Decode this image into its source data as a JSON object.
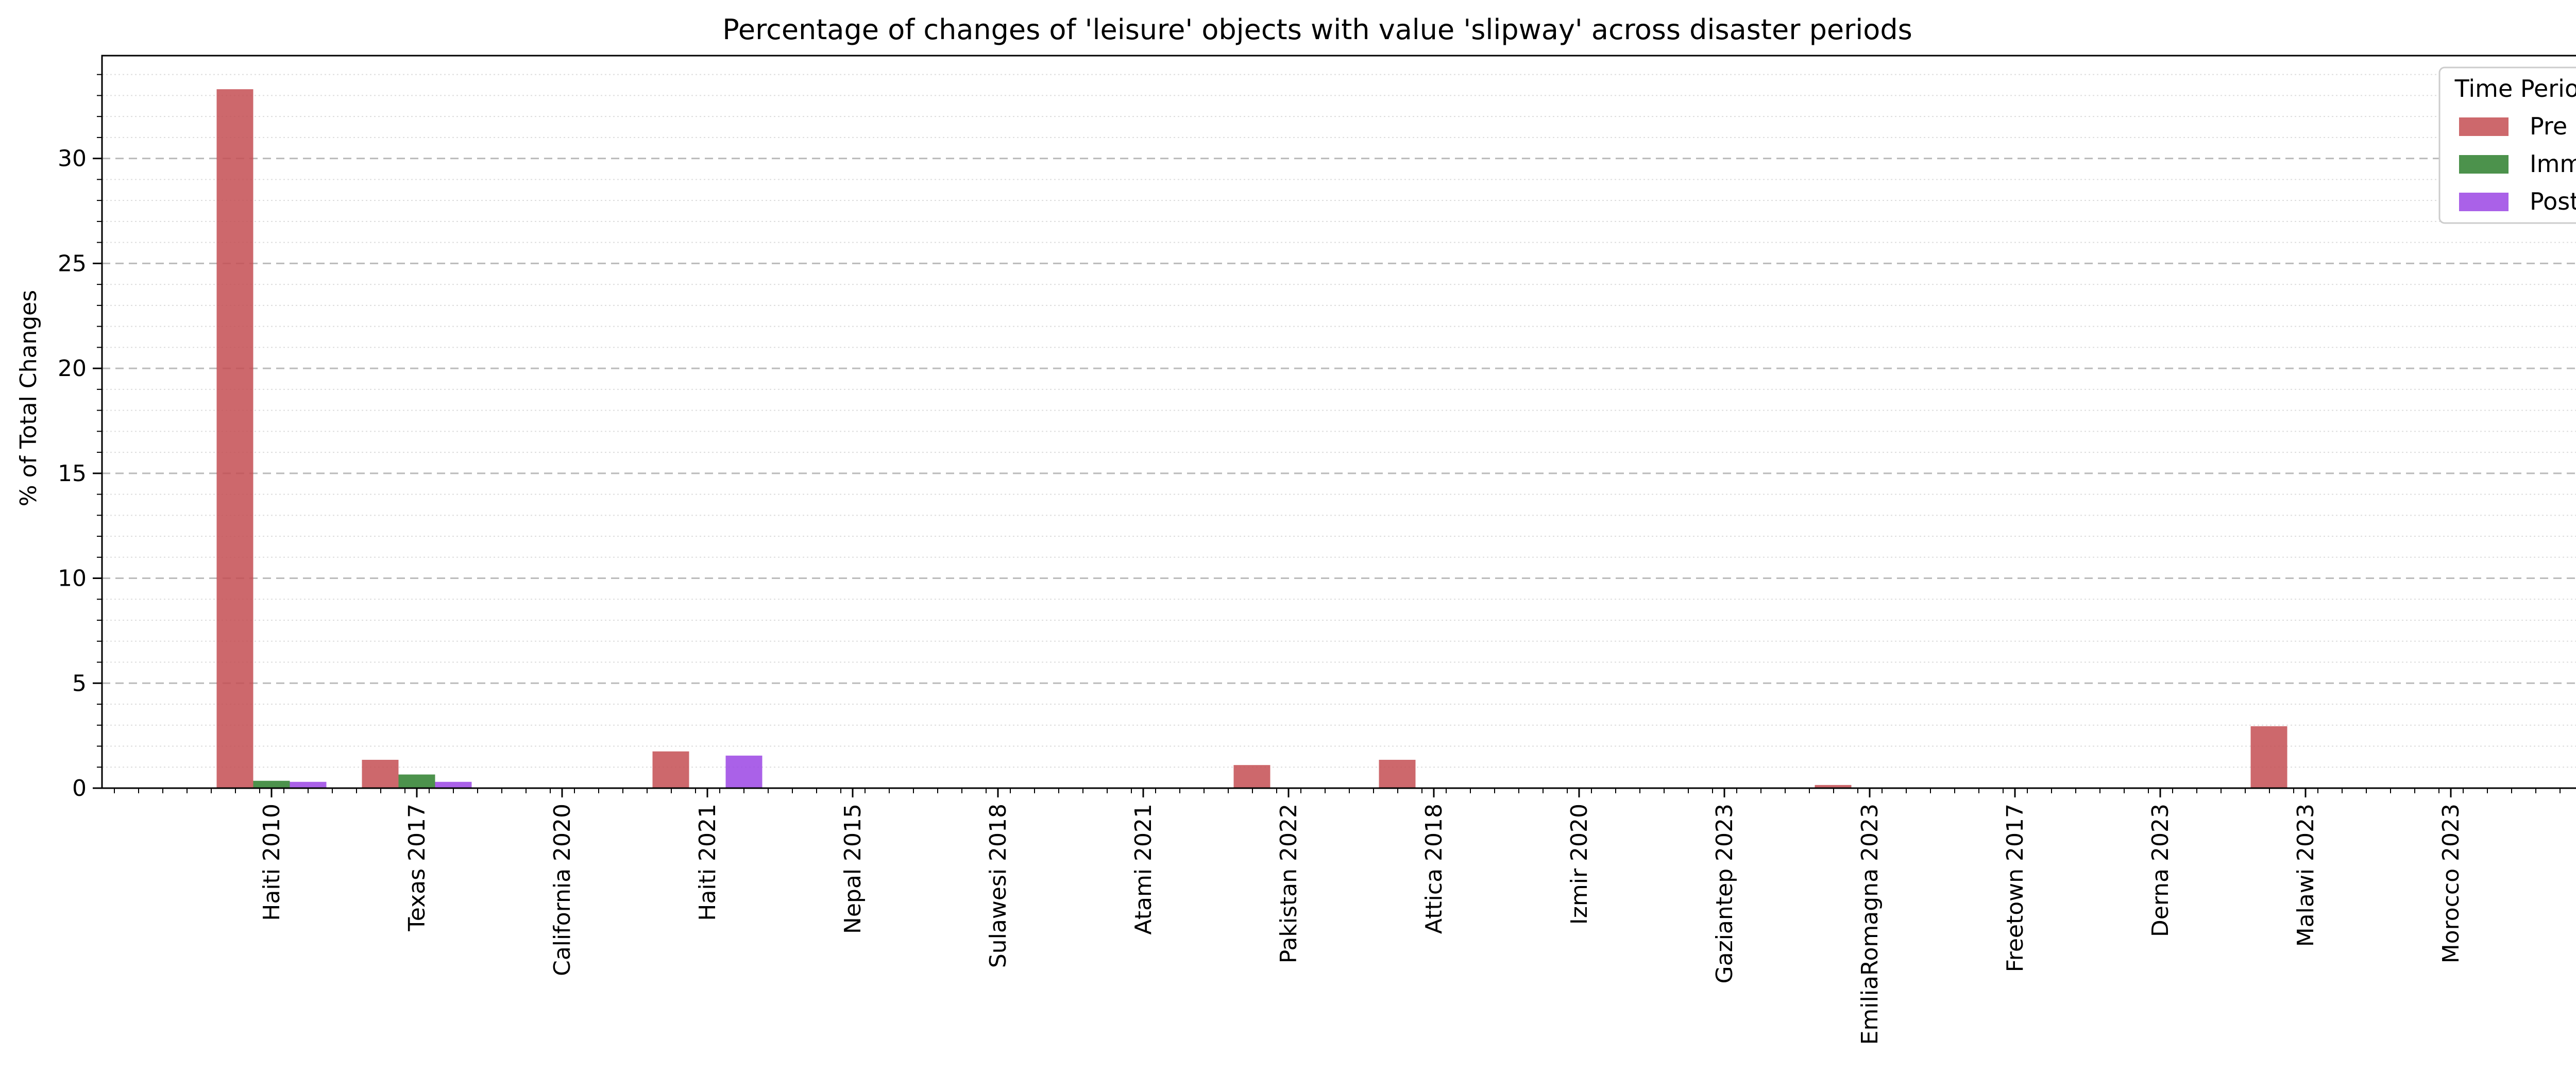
{
  "chart_data": {
    "type": "bar",
    "title": "Percentage of changes of 'leisure' objects with value 'slipway' across disaster periods",
    "xlabel": "",
    "ylabel": "% of Total Changes",
    "ylim": [
      0,
      34.9
    ],
    "yticks": [
      0,
      5,
      10,
      15,
      20,
      25,
      30
    ],
    "grid": "horizontal dashed",
    "legend": {
      "title": "Time Period",
      "placement": "top-right"
    },
    "categories": [
      "Haiti 2010",
      "Texas 2017",
      "California 2020",
      "Haiti 2021",
      "Nepal 2015",
      "Sulawesi 2018",
      "Atami 2021",
      "Pakistan 2022",
      "Attica 2018",
      "Izmir 2020",
      "Gaziantep 2023",
      "EmiliaRomagna 2023",
      "Freetown 2017",
      "Derna 2023",
      "Malawi 2023",
      "Morocco 2023"
    ],
    "series": [
      {
        "name": "Pre",
        "color": "#c44e52",
        "values": [
          33.3,
          1.35,
          0,
          1.75,
          0,
          0,
          0,
          1.1,
          1.35,
          0,
          0,
          0.15,
          0,
          0,
          2.95,
          0
        ]
      },
      {
        "name": "Imm",
        "color": "#2d7f2d",
        "values": [
          0.35,
          0.65,
          0,
          0,
          0,
          0,
          0,
          0,
          0,
          0,
          0,
          0,
          0,
          0,
          0,
          0
        ]
      },
      {
        "name": "Post",
        "color": "#9b45e4",
        "values": [
          0.3,
          0.3,
          0,
          1.55,
          0,
          0,
          0,
          0,
          0,
          0,
          0,
          0,
          0,
          0,
          0,
          0
        ]
      }
    ]
  }
}
